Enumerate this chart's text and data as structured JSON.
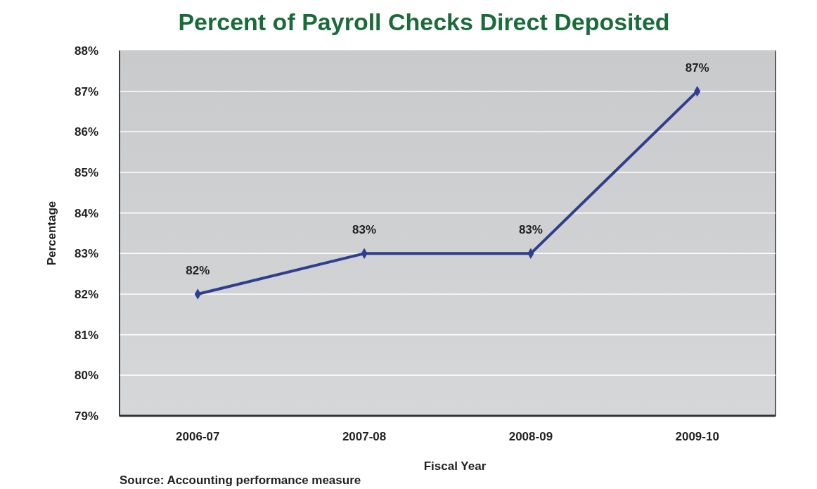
{
  "chart_data": {
    "type": "line",
    "title": "Percent of Payroll Checks Direct Deposited",
    "xlabel": "Fiscal Year",
    "ylabel": "Percentage",
    "categories": [
      "2006-07",
      "2007-08",
      "2008-09",
      "2009-10"
    ],
    "series": [
      {
        "color": "#2e3f8f",
        "values": [
          82,
          83,
          83,
          87
        ],
        "value_labels": [
          "82%",
          "83%",
          "83%",
          "87%"
        ]
      }
    ],
    "ylim": [
      79,
      88
    ],
    "yticks": [
      {
        "value": 79,
        "label": "79%"
      },
      {
        "value": 80,
        "label": "80%"
      },
      {
        "value": 81,
        "label": "81%"
      },
      {
        "value": 82,
        "label": "82%"
      },
      {
        "value": 83,
        "label": "83%"
      },
      {
        "value": 84,
        "label": "84%"
      },
      {
        "value": 85,
        "label": "85%"
      },
      {
        "value": 86,
        "label": "86%"
      },
      {
        "value": 87,
        "label": "87%"
      },
      {
        "value": 88,
        "label": "88%"
      }
    ],
    "grid": "y",
    "marker": "diamond",
    "line_style": "solid",
    "annotations": [
      "Source: Accounting performance measure"
    ]
  }
}
